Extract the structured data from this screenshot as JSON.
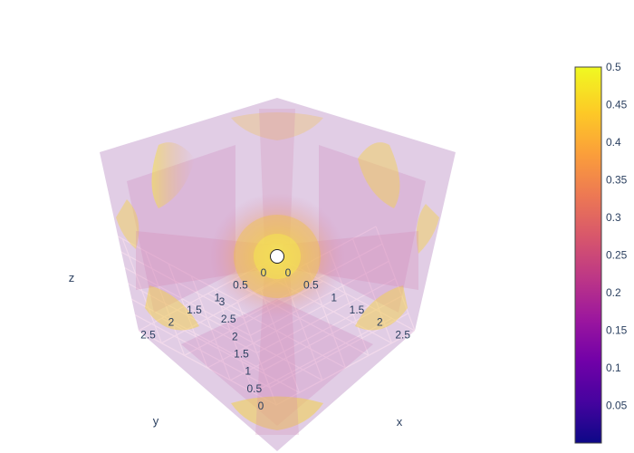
{
  "chart_data": {
    "type": "volume",
    "title": "",
    "axes": {
      "x": {
        "label": "x",
        "ticks": [
          "0",
          "0.5",
          "1",
          "1.5",
          "2",
          "2.5"
        ],
        "range": [
          0,
          3
        ]
      },
      "y": {
        "label": "y",
        "ticks": [
          "0",
          "0.5",
          "1",
          "1.5",
          "2",
          "2.5"
        ],
        "range": [
          0,
          3
        ]
      },
      "z": {
        "label": "z",
        "ticks": [
          "0",
          "0.5",
          "1",
          "1.5",
          "2",
          "2.5",
          "3"
        ],
        "range": [
          0,
          3
        ]
      }
    },
    "colorscale": {
      "name": "plasma",
      "range": [
        0,
        0.5
      ],
      "stops": [
        "#0d0887",
        "#46039f",
        "#7201a8",
        "#9c179e",
        "#bd3786",
        "#d8576b",
        "#ed7953",
        "#fb9f3a",
        "#fdca26",
        "#f0f921"
      ],
      "ticks": [
        "0.05",
        "0.1",
        "0.15",
        "0.2",
        "0.25",
        "0.3",
        "0.35",
        "0.4",
        "0.45",
        "0.5"
      ]
    },
    "scene": {
      "background": "#e5ecf6",
      "gridcolor": "#ffffff",
      "grid": true
    },
    "colors": {
      "volume_low": "#cc78b7",
      "volume_mid": "#e89f7a",
      "volume_high": "#f5e44a",
      "marker": "#ffffff"
    }
  }
}
